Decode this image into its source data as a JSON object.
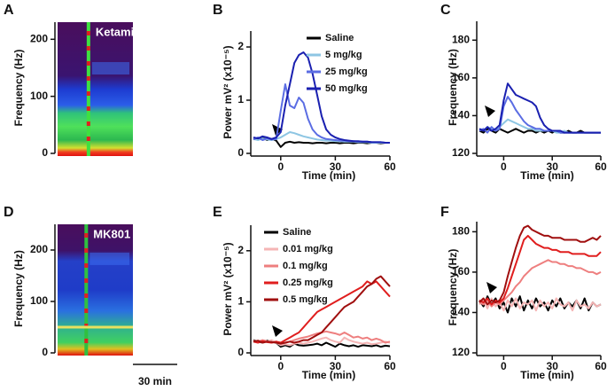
{
  "chart_data": [
    {
      "type": "spectrogram",
      "panel": "A",
      "annotation": "Ketamine",
      "ylabel": "Frequency (Hz)",
      "ylim": [
        0,
        230
      ],
      "yticks": [
        0,
        100,
        200
      ]
    },
    {
      "type": "line",
      "panel": "B",
      "ylabel": "Power mV² (x10⁻⁵)",
      "xlabel": "Time (min)",
      "xlim": [
        -15,
        60
      ],
      "xticks": [
        0,
        30,
        60
      ],
      "ylim": [
        0,
        2.3
      ],
      "yticks": [
        0,
        1,
        2
      ],
      "legend": "top-right",
      "x": [
        -15,
        -12.5,
        -10,
        -7.5,
        -5,
        -2.5,
        0,
        2.5,
        5,
        7.5,
        10,
        12.5,
        15,
        17.5,
        20,
        22.5,
        25,
        27.5,
        30,
        32.5,
        35,
        37.5,
        40,
        42.5,
        45,
        47.5,
        50,
        52.5,
        55,
        57.5,
        60
      ],
      "series": [
        {
          "name": "Saline",
          "color": "#000000",
          "values": [
            0.28,
            0.26,
            0.3,
            0.25,
            0.27,
            0.24,
            0.12,
            0.2,
            0.22,
            0.2,
            0.21,
            0.2,
            0.2,
            0.19,
            0.2,
            0.2,
            0.19,
            0.2,
            0.2,
            0.19,
            0.2,
            0.2,
            0.19,
            0.2,
            0.2,
            0.19,
            0.2,
            0.2,
            0.19,
            0.2,
            0.2
          ]
        },
        {
          "name": "5 mg/kg",
          "color": "#8ec6e3",
          "values": [
            0.27,
            0.25,
            0.28,
            0.26,
            0.25,
            0.27,
            0.3,
            0.35,
            0.4,
            0.38,
            0.35,
            0.32,
            0.3,
            0.28,
            0.26,
            0.25,
            0.24,
            0.24,
            0.23,
            0.23,
            0.22,
            0.22,
            0.22,
            0.21,
            0.21,
            0.21,
            0.2,
            0.2,
            0.2,
            0.2,
            0.2
          ]
        },
        {
          "name": "25 mg/kg",
          "color": "#5b6de3",
          "values": [
            0.26,
            0.3,
            0.25,
            0.28,
            0.26,
            0.27,
            0.8,
            1.3,
            0.9,
            0.85,
            1.05,
            0.95,
            0.65,
            0.45,
            0.35,
            0.3,
            0.27,
            0.26,
            0.25,
            0.24,
            0.24,
            0.23,
            0.23,
            0.22,
            0.22,
            0.22,
            0.21,
            0.21,
            0.21,
            0.2,
            0.2
          ]
        },
        {
          "name": "50 mg/kg",
          "color": "#1a20b0",
          "values": [
            0.3,
            0.28,
            0.32,
            0.3,
            0.27,
            0.3,
            0.4,
            0.9,
            1.3,
            1.7,
            1.85,
            1.9,
            1.8,
            1.5,
            1.1,
            0.7,
            0.45,
            0.35,
            0.3,
            0.27,
            0.25,
            0.24,
            0.23,
            0.23,
            0.22,
            0.22,
            0.21,
            0.21,
            0.21,
            0.2,
            0.2
          ]
        }
      ]
    },
    {
      "type": "line",
      "panel": "C",
      "ylabel": "Frequency (Hz)",
      "xlabel": "Time (min)",
      "xlim": [
        -15,
        60
      ],
      "xticks": [
        0,
        30,
        60
      ],
      "ylim": [
        120,
        190
      ],
      "yticks": [
        120,
        140,
        160,
        180
      ],
      "x": [
        -15,
        -12.5,
        -10,
        -7.5,
        -5,
        -2.5,
        0,
        2.5,
        5,
        7.5,
        10,
        12.5,
        15,
        17.5,
        20,
        22.5,
        25,
        27.5,
        30,
        32.5,
        35,
        37.5,
        40,
        42.5,
        45,
        47.5,
        50,
        52.5,
        55,
        57.5,
        60
      ],
      "series": [
        {
          "color": "#000000",
          "values": [
            132,
            131,
            133,
            132,
            131,
            133,
            132,
            131,
            132,
            133,
            132,
            131,
            132,
            132,
            131,
            132,
            131,
            132,
            131,
            132,
            131,
            131,
            132,
            131,
            131,
            132,
            131,
            131,
            131,
            131,
            131
          ]
        },
        {
          "color": "#8ec6e3",
          "values": [
            133,
            132,
            134,
            133,
            132,
            134,
            136,
            138,
            137,
            136,
            135,
            134,
            133,
            133,
            132,
            132,
            132,
            132,
            132,
            131,
            131,
            132,
            131,
            131,
            131,
            131,
            131,
            131,
            131,
            131,
            131
          ]
        },
        {
          "color": "#5b6de3",
          "values": [
            132,
            133,
            131,
            134,
            132,
            133,
            145,
            150,
            147,
            143,
            140,
            137,
            135,
            134,
            133,
            133,
            132,
            132,
            132,
            132,
            131,
            131,
            131,
            131,
            131,
            131,
            131,
            131,
            131,
            131,
            131
          ]
        },
        {
          "color": "#1a20b0",
          "values": [
            133,
            132,
            134,
            132,
            133,
            135,
            148,
            157,
            154,
            151,
            150,
            149,
            148,
            147,
            145,
            139,
            135,
            133,
            132,
            132,
            132,
            131,
            131,
            131,
            131,
            131,
            131,
            131,
            131,
            131,
            131
          ]
        }
      ]
    },
    {
      "type": "spectrogram",
      "panel": "D",
      "annotation": "MK801",
      "scale_bar": "30 min",
      "ylabel": "Frequency (Hz)",
      "ylim": [
        0,
        250
      ],
      "yticks": [
        0,
        100,
        200
      ]
    },
    {
      "type": "line",
      "panel": "E",
      "ylabel": "Power mV² (x10⁻⁵)",
      "xlabel": "Time (min)",
      "xlim": [
        -15,
        60
      ],
      "xticks": [
        0,
        30,
        60
      ],
      "ylim": [
        0,
        2.5
      ],
      "yticks": [
        0,
        1,
        2
      ],
      "legend": "top-left",
      "x": [
        -15,
        -12.5,
        -10,
        -7.5,
        -5,
        -2.5,
        0,
        2.5,
        5,
        7.5,
        10,
        12.5,
        15,
        17.5,
        20,
        22.5,
        25,
        27.5,
        30,
        32.5,
        35,
        37.5,
        40,
        42.5,
        45,
        47.5,
        50,
        52.5,
        55,
        57.5,
        60
      ],
      "series": [
        {
          "name": "Saline",
          "color": "#000000",
          "values": [
            0.25,
            0.22,
            0.2,
            0.24,
            0.22,
            0.2,
            0.12,
            0.15,
            0.12,
            0.18,
            0.15,
            0.14,
            0.15,
            0.16,
            0.18,
            0.15,
            0.2,
            0.16,
            0.12,
            0.18,
            0.15,
            0.13,
            0.15,
            0.12,
            0.15,
            0.14,
            0.13,
            0.15,
            0.12,
            0.14,
            0.13
          ]
        },
        {
          "name": "0.01 mg/kg",
          "color": "#f5b5b5",
          "values": [
            0.22,
            0.24,
            0.2,
            0.22,
            0.25,
            0.2,
            0.15,
            0.17,
            0.15,
            0.18,
            0.2,
            0.18,
            0.2,
            0.22,
            0.25,
            0.28,
            0.3,
            0.25,
            0.22,
            0.2,
            0.3,
            0.25,
            0.22,
            0.2,
            0.18,
            0.2,
            0.17,
            0.18,
            0.2,
            0.22,
            0.2
          ]
        },
        {
          "name": "0.1 mg/kg",
          "color": "#ee7f7f",
          "values": [
            0.24,
            0.22,
            0.25,
            0.23,
            0.2,
            0.22,
            0.18,
            0.2,
            0.22,
            0.25,
            0.28,
            0.3,
            0.32,
            0.35,
            0.38,
            0.4,
            0.42,
            0.4,
            0.38,
            0.35,
            0.4,
            0.35,
            0.3,
            0.32,
            0.28,
            0.3,
            0.25,
            0.28,
            0.25,
            0.2,
            0.22
          ]
        },
        {
          "name": "0.25 mg/kg",
          "color": "#e01e1e",
          "values": [
            0.22,
            0.2,
            0.23,
            0.21,
            0.2,
            0.22,
            0.2,
            0.25,
            0.3,
            0.35,
            0.4,
            0.5,
            0.6,
            0.7,
            0.8,
            0.85,
            0.9,
            0.95,
            1.0,
            1.05,
            1.1,
            1.15,
            1.2,
            1.25,
            1.3,
            1.4,
            1.35,
            1.4,
            1.3,
            1.2,
            1.1
          ]
        },
        {
          "name": "0.5 mg/kg",
          "color": "#a00f0f",
          "values": [
            0.22,
            0.24,
            0.2,
            0.22,
            0.21,
            0.2,
            0.18,
            0.2,
            0.22,
            0.2,
            0.22,
            0.25,
            0.25,
            0.3,
            0.35,
            0.4,
            0.5,
            0.6,
            0.7,
            0.8,
            0.9,
            0.95,
            1.0,
            1.1,
            1.2,
            1.3,
            1.35,
            1.45,
            1.5,
            1.4,
            1.3
          ]
        }
      ]
    },
    {
      "type": "line",
      "panel": "F",
      "ylabel": "Frequency (Hz)",
      "xlabel": "Time (min)",
      "xlim": [
        -15,
        60
      ],
      "xticks": [
        0,
        30,
        60
      ],
      "ylim": [
        120,
        185
      ],
      "yticks": [
        120,
        140,
        160,
        180
      ],
      "x": [
        -15,
        -12.5,
        -10,
        -7.5,
        -5,
        -2.5,
        0,
        2.5,
        5,
        7.5,
        10,
        12.5,
        15,
        17.5,
        20,
        22.5,
        25,
        27.5,
        30,
        32.5,
        35,
        37.5,
        40,
        42.5,
        45,
        47.5,
        50,
        52.5,
        55,
        57.5,
        60
      ],
      "series": [
        {
          "color": "#000000",
          "values": [
            146,
            143,
            148,
            144,
            147,
            142,
            145,
            140,
            147,
            143,
            148,
            141,
            146,
            142,
            147,
            143,
            145,
            141,
            146,
            143,
            147,
            142,
            145,
            143,
            146,
            142,
            147,
            141,
            145,
            143,
            144
          ]
        },
        {
          "color": "#f5b5b5",
          "values": [
            144,
            146,
            142,
            147,
            143,
            145,
            141,
            146,
            143,
            147,
            142,
            145,
            144,
            146,
            141,
            146,
            143,
            145,
            142,
            147,
            144,
            143,
            145,
            141,
            146,
            143,
            144,
            142,
            145,
            143,
            144
          ]
        },
        {
          "color": "#ee7f7f",
          "values": [
            145,
            144,
            146,
            143,
            145,
            144,
            146,
            148,
            150,
            153,
            155,
            158,
            160,
            162,
            163,
            164,
            165,
            166,
            165,
            165,
            164,
            164,
            163,
            163,
            162,
            162,
            161,
            160,
            160,
            159,
            160
          ]
        },
        {
          "color": "#e01e1e",
          "values": [
            146,
            145,
            147,
            144,
            146,
            145,
            147,
            152,
            158,
            164,
            170,
            176,
            178,
            176,
            174,
            173,
            172,
            172,
            171,
            171,
            170,
            170,
            170,
            169,
            169,
            169,
            169,
            168,
            168,
            168,
            170
          ]
        },
        {
          "color": "#a00f0f",
          "values": [
            145,
            147,
            144,
            146,
            145,
            146,
            150,
            158,
            165,
            172,
            178,
            182,
            183,
            181,
            180,
            179,
            178,
            178,
            177,
            177,
            177,
            176,
            176,
            176,
            176,
            175,
            175,
            176,
            177,
            176,
            178
          ]
        }
      ]
    }
  ]
}
